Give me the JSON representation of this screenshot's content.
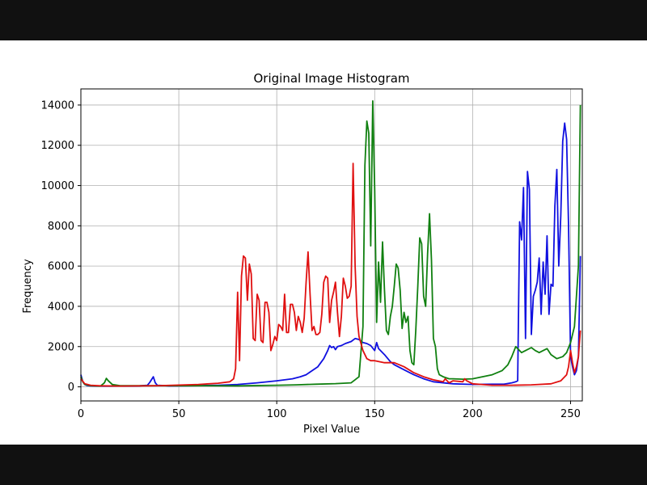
{
  "chart_data": {
    "type": "line",
    "title": "Original Image Histogram",
    "xlabel": "Pixel Value",
    "ylabel": "Frequency",
    "xlim": [
      0,
      256
    ],
    "ylim": [
      -700,
      14800
    ],
    "xticks": [
      0,
      50,
      100,
      150,
      200,
      250
    ],
    "yticks": [
      0,
      2000,
      4000,
      6000,
      8000,
      10000,
      12000,
      14000
    ],
    "grid": true,
    "series": [
      {
        "color": "#1010e0",
        "points": [
          [
            0,
            600
          ],
          [
            1,
            250
          ],
          [
            2,
            120
          ],
          [
            3,
            70
          ],
          [
            5,
            50
          ],
          [
            10,
            40
          ],
          [
            20,
            40
          ],
          [
            30,
            50
          ],
          [
            34,
            80
          ],
          [
            35,
            200
          ],
          [
            36,
            350
          ],
          [
            37,
            500
          ],
          [
            38,
            200
          ],
          [
            39,
            80
          ],
          [
            45,
            50
          ],
          [
            60,
            60
          ],
          [
            70,
            80
          ],
          [
            80,
            120
          ],
          [
            90,
            200
          ],
          [
            100,
            300
          ],
          [
            108,
            400
          ],
          [
            112,
            500
          ],
          [
            115,
            600
          ],
          [
            118,
            800
          ],
          [
            121,
            1000
          ],
          [
            124,
            1400
          ],
          [
            126,
            1800
          ],
          [
            127,
            2050
          ],
          [
            128,
            1950
          ],
          [
            129,
            2000
          ],
          [
            130,
            1850
          ],
          [
            131,
            2000
          ],
          [
            133,
            2050
          ],
          [
            135,
            2150
          ],
          [
            138,
            2250
          ],
          [
            140,
            2400
          ],
          [
            142,
            2350
          ],
          [
            144,
            2200
          ],
          [
            146,
            2150
          ],
          [
            148,
            2050
          ],
          [
            150,
            1800
          ],
          [
            151,
            2200
          ],
          [
            152,
            1900
          ],
          [
            155,
            1600
          ],
          [
            158,
            1250
          ],
          [
            160,
            1100
          ],
          [
            165,
            850
          ],
          [
            170,
            600
          ],
          [
            175,
            400
          ],
          [
            180,
            250
          ],
          [
            190,
            150
          ],
          [
            200,
            120
          ],
          [
            210,
            130
          ],
          [
            216,
            130
          ],
          [
            220,
            200
          ],
          [
            222,
            250
          ],
          [
            223,
            300
          ],
          [
            224,
            8200
          ],
          [
            225,
            7300
          ],
          [
            226,
            9900
          ],
          [
            227,
            2400
          ],
          [
            228,
            10700
          ],
          [
            229,
            9800
          ],
          [
            230,
            2600
          ],
          [
            231,
            4500
          ],
          [
            232,
            4800
          ],
          [
            233,
            5200
          ],
          [
            234,
            6400
          ],
          [
            235,
            3600
          ],
          [
            236,
            6200
          ],
          [
            237,
            4600
          ],
          [
            238,
            7500
          ],
          [
            239,
            3600
          ],
          [
            240,
            5100
          ],
          [
            241,
            5000
          ],
          [
            242,
            9000
          ],
          [
            243,
            10800
          ],
          [
            244,
            6000
          ],
          [
            245,
            8500
          ],
          [
            246,
            12200
          ],
          [
            247,
            13100
          ],
          [
            248,
            12300
          ],
          [
            249,
            8000
          ],
          [
            250,
            1500
          ],
          [
            251,
            1000
          ],
          [
            252,
            600
          ],
          [
            253,
            800
          ],
          [
            254,
            1500
          ],
          [
            255,
            6500
          ]
        ]
      },
      {
        "color": "#108010",
        "points": [
          [
            0,
            500
          ],
          [
            1,
            250
          ],
          [
            2,
            120
          ],
          [
            5,
            60
          ],
          [
            10,
            40
          ],
          [
            12,
            200
          ],
          [
            13,
            420
          ],
          [
            14,
            300
          ],
          [
            16,
            120
          ],
          [
            20,
            60
          ],
          [
            30,
            60
          ],
          [
            60,
            60
          ],
          [
            80,
            50
          ],
          [
            100,
            80
          ],
          [
            110,
            100
          ],
          [
            120,
            130
          ],
          [
            130,
            160
          ],
          [
            138,
            200
          ],
          [
            142,
            500
          ],
          [
            144,
            3000
          ],
          [
            145,
            11000
          ],
          [
            146,
            13200
          ],
          [
            147,
            12600
          ],
          [
            148,
            7000
          ],
          [
            149,
            14200
          ],
          [
            150,
            9800
          ],
          [
            151,
            3200
          ],
          [
            152,
            6200
          ],
          [
            153,
            4200
          ],
          [
            154,
            7200
          ],
          [
            155,
            4800
          ],
          [
            156,
            2800
          ],
          [
            157,
            2600
          ],
          [
            158,
            3500
          ],
          [
            159,
            4000
          ],
          [
            160,
            5000
          ],
          [
            161,
            6100
          ],
          [
            162,
            5900
          ],
          [
            163,
            4800
          ],
          [
            164,
            2900
          ],
          [
            165,
            3700
          ],
          [
            166,
            3200
          ],
          [
            167,
            3500
          ],
          [
            168,
            1800
          ],
          [
            169,
            1200
          ],
          [
            170,
            1100
          ],
          [
            171,
            2800
          ],
          [
            172,
            5000
          ],
          [
            173,
            7400
          ],
          [
            174,
            7100
          ],
          [
            175,
            4500
          ],
          [
            176,
            4000
          ],
          [
            177,
            6600
          ],
          [
            178,
            8600
          ],
          [
            179,
            6300
          ],
          [
            180,
            2400
          ],
          [
            181,
            2000
          ],
          [
            182,
            900
          ],
          [
            183,
            600
          ],
          [
            185,
            500
          ],
          [
            188,
            400
          ],
          [
            190,
            400
          ],
          [
            195,
            380
          ],
          [
            200,
            400
          ],
          [
            205,
            500
          ],
          [
            210,
            600
          ],
          [
            215,
            800
          ],
          [
            218,
            1100
          ],
          [
            220,
            1500
          ],
          [
            222,
            2000
          ],
          [
            223,
            1900
          ],
          [
            225,
            1700
          ],
          [
            227,
            1800
          ],
          [
            230,
            1950
          ],
          [
            232,
            1800
          ],
          [
            234,
            1700
          ],
          [
            236,
            1800
          ],
          [
            238,
            1900
          ],
          [
            240,
            1600
          ],
          [
            243,
            1400
          ],
          [
            246,
            1500
          ],
          [
            248,
            1700
          ],
          [
            250,
            2200
          ],
          [
            252,
            3000
          ],
          [
            254,
            6000
          ],
          [
            255,
            14000
          ]
        ]
      },
      {
        "color": "#e01010",
        "points": [
          [
            0,
            400
          ],
          [
            2,
            150
          ],
          [
            5,
            80
          ],
          [
            10,
            50
          ],
          [
            20,
            40
          ],
          [
            40,
            60
          ],
          [
            60,
            120
          ],
          [
            70,
            180
          ],
          [
            76,
            250
          ],
          [
            78,
            400
          ],
          [
            79,
            900
          ],
          [
            80,
            4700
          ],
          [
            81,
            1300
          ],
          [
            82,
            5500
          ],
          [
            83,
            6500
          ],
          [
            84,
            6400
          ],
          [
            85,
            4300
          ],
          [
            86,
            6100
          ],
          [
            87,
            5600
          ],
          [
            88,
            2400
          ],
          [
            89,
            2300
          ],
          [
            90,
            4600
          ],
          [
            91,
            4300
          ],
          [
            92,
            2300
          ],
          [
            93,
            2200
          ],
          [
            94,
            4200
          ],
          [
            95,
            4200
          ],
          [
            96,
            3700
          ],
          [
            97,
            1800
          ],
          [
            98,
            2100
          ],
          [
            99,
            2500
          ],
          [
            100,
            2300
          ],
          [
            101,
            3100
          ],
          [
            102,
            3000
          ],
          [
            103,
            2800
          ],
          [
            104,
            4600
          ],
          [
            105,
            2700
          ],
          [
            106,
            2700
          ],
          [
            107,
            4100
          ],
          [
            108,
            4100
          ],
          [
            109,
            3700
          ],
          [
            110,
            2800
          ],
          [
            111,
            3500
          ],
          [
            112,
            3200
          ],
          [
            113,
            2700
          ],
          [
            114,
            3400
          ],
          [
            115,
            5200
          ],
          [
            116,
            6700
          ],
          [
            117,
            4600
          ],
          [
            118,
            2800
          ],
          [
            119,
            3000
          ],
          [
            120,
            2600
          ],
          [
            121,
            2600
          ],
          [
            122,
            2700
          ],
          [
            123,
            3600
          ],
          [
            124,
            5200
          ],
          [
            125,
            5500
          ],
          [
            126,
            5400
          ],
          [
            127,
            3200
          ],
          [
            128,
            4300
          ],
          [
            129,
            4700
          ],
          [
            130,
            5200
          ],
          [
            131,
            3700
          ],
          [
            132,
            2500
          ],
          [
            133,
            3500
          ],
          [
            134,
            5400
          ],
          [
            135,
            5000
          ],
          [
            136,
            4400
          ],
          [
            137,
            4500
          ],
          [
            138,
            5000
          ],
          [
            139,
            11100
          ],
          [
            140,
            6000
          ],
          [
            141,
            3500
          ],
          [
            142,
            2500
          ],
          [
            144,
            1800
          ],
          [
            146,
            1400
          ],
          [
            148,
            1300
          ],
          [
            150,
            1300
          ],
          [
            155,
            1200
          ],
          [
            160,
            1200
          ],
          [
            165,
            1000
          ],
          [
            170,
            700
          ],
          [
            175,
            500
          ],
          [
            180,
            350
          ],
          [
            185,
            250
          ],
          [
            186,
            400
          ],
          [
            188,
            200
          ],
          [
            190,
            300
          ],
          [
            195,
            250
          ],
          [
            196,
            400
          ],
          [
            197,
            300
          ],
          [
            200,
            150
          ],
          [
            210,
            80
          ],
          [
            220,
            80
          ],
          [
            230,
            100
          ],
          [
            240,
            150
          ],
          [
            245,
            300
          ],
          [
            248,
            600
          ],
          [
            249,
            1000
          ],
          [
            250,
            1800
          ],
          [
            251,
            1200
          ],
          [
            252,
            700
          ],
          [
            253,
            1000
          ],
          [
            254,
            1500
          ],
          [
            255,
            2800
          ]
        ]
      }
    ]
  }
}
